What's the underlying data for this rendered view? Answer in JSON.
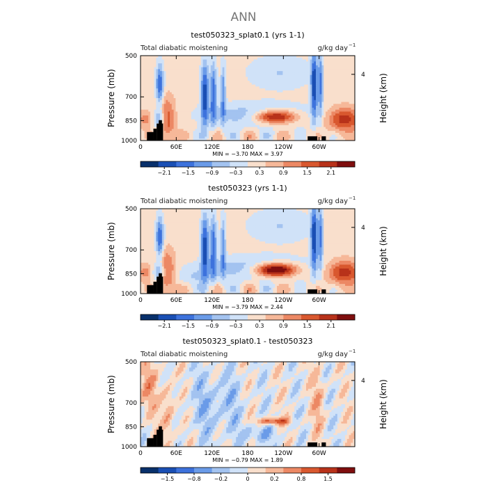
{
  "figure_title": "ANN",
  "panels": [
    {
      "title": "test050323_splat0.1 (yrs 1-1)",
      "left_label": "Total diabatic moistening",
      "right_label": "g/kg day",
      "units_exp": "−1",
      "min_max": "MIN =   −3.70   MAX =    3.97",
      "colorbar_labels": [
        "−2.1",
        "−1.5",
        "−0.9",
        "−0.3",
        "0.3",
        "0.9",
        "1.5",
        "2.1"
      ]
    },
    {
      "title": "test050323 (yrs 1-1)",
      "left_label": "Total diabatic moistening",
      "right_label": "g/kg day",
      "units_exp": "−1",
      "min_max": "MIN =   −3.79   MAX =    2.44",
      "colorbar_labels": [
        "−2.1",
        "−1.5",
        "−0.9",
        "−0.3",
        "0.3",
        "0.9",
        "1.5",
        "2.1"
      ]
    },
    {
      "title": "test050323_splat0.1 - test050323",
      "left_label": "Total diabatic moistening",
      "right_label": "g/kg day",
      "units_exp": "−1",
      "min_max": "MIN =   −0.79   MAX =    1.89",
      "colorbar_labels": [
        "−1.5",
        "−0.8",
        "−0.2",
        "0",
        "0.2",
        "0.8",
        "1.5"
      ]
    }
  ],
  "chart_data": [
    {
      "type": "heatmap",
      "title": "test050323_splat0.1 (yrs 1-1)",
      "xlabel": "",
      "ylabel": "Pressure (mb)",
      "y2label": "Height (km)",
      "xticks": [
        "0",
        "60E",
        "120E",
        "180",
        "120W",
        "60W"
      ],
      "yticks": [
        "500",
        "700",
        "850",
        "1000"
      ],
      "y2ticks": [
        "4"
      ],
      "ylim": [
        1000,
        500
      ],
      "min": -3.7,
      "max": 3.97,
      "colorbar": [
        "#08306b",
        "#1a4fb4",
        "#3d72dc",
        "#6a9be8",
        "#a3c3f0",
        "#d0e2f8",
        "#f9dfcc",
        "#f6b899",
        "#ec8864",
        "#d9582f",
        "#b8321a",
        "#7f0e0e"
      ]
    },
    {
      "type": "heatmap",
      "title": "test050323 (yrs 1-1)",
      "xlabel": "",
      "ylabel": "Pressure (mb)",
      "y2label": "Height (km)",
      "xticks": [
        "0",
        "60E",
        "120E",
        "180",
        "120W",
        "60W"
      ],
      "yticks": [
        "500",
        "700",
        "850",
        "1000"
      ],
      "y2ticks": [
        "4"
      ],
      "ylim": [
        1000,
        500
      ],
      "min": -3.79,
      "max": 2.44,
      "colorbar": [
        "#08306b",
        "#1a4fb4",
        "#3d72dc",
        "#6a9be8",
        "#a3c3f0",
        "#d0e2f8",
        "#f9dfcc",
        "#f6b899",
        "#ec8864",
        "#d9582f",
        "#b8321a",
        "#7f0e0e"
      ]
    },
    {
      "type": "heatmap",
      "title": "test050323_splat0.1 - test050323",
      "xlabel": "",
      "ylabel": "Pressure (mb)",
      "y2label": "Height (km)",
      "xticks": [
        "0",
        "60E",
        "120E",
        "180",
        "120W",
        "60W"
      ],
      "yticks": [
        "500",
        "700",
        "850",
        "1000"
      ],
      "y2ticks": [
        "4"
      ],
      "ylim": [
        1000,
        500
      ],
      "min": -0.79,
      "max": 1.89,
      "colorbar": [
        "#08306b",
        "#1a4fb4",
        "#3d72dc",
        "#6a9be8",
        "#a3c3f0",
        "#d0e2f8",
        "#f9dfcc",
        "#f6b899",
        "#ec8864",
        "#d9582f",
        "#b8321a",
        "#7f0e0e"
      ]
    }
  ]
}
